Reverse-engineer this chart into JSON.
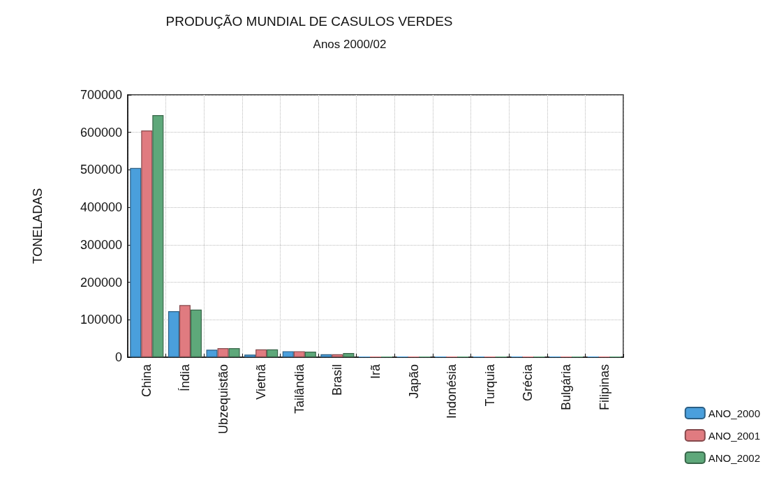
{
  "chart_data": {
    "type": "bar",
    "title": "PRODUÇÃO MUNDIAL DE CASULOS VERDES",
    "subtitle": "Anos 2000/02",
    "ylabel": "TONELADAS",
    "categories": [
      "China",
      "Índia",
      "Ubzequistão",
      "Vietnã",
      "Tailândia",
      "Brasil",
      "Irã",
      "Japão",
      "Indonésia",
      "Turquia",
      "Grécia",
      "Bulgária",
      "Filipinas"
    ],
    "series": [
      {
        "name": "ANO_2000",
        "color": "#4a9fdc",
        "values": [
          505000,
          123000,
          20000,
          7000,
          16000,
          8000,
          2000,
          2000,
          2000,
          2000,
          2000,
          2000,
          2000
        ]
      },
      {
        "name": "ANO_2001",
        "color": "#e07b80",
        "values": [
          605000,
          139000,
          24000,
          21000,
          16000,
          8000,
          2000,
          2000,
          2000,
          2000,
          2000,
          2000,
          2000
        ]
      },
      {
        "name": "ANO_2002",
        "color": "#5ea87a",
        "values": [
          646000,
          127000,
          24000,
          21000,
          15000,
          11000,
          2000,
          2000,
          2000,
          2000,
          2000,
          2000,
          2000
        ]
      }
    ],
    "ylim": [
      0,
      700000
    ],
    "yticks": [
      0,
      100000,
      200000,
      300000,
      400000,
      500000,
      600000,
      700000
    ],
    "grid": true,
    "legend": "bottom right"
  }
}
